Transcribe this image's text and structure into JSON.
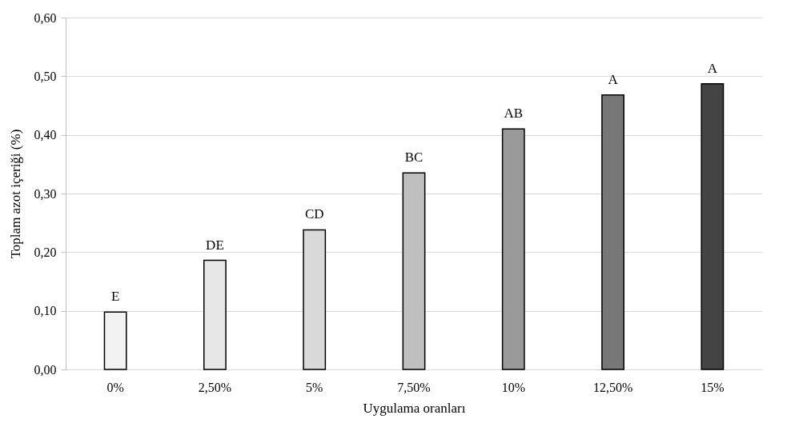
{
  "chart_data": {
    "type": "bar",
    "xlabel": "Uygulama oranları",
    "ylabel": "Toplam azot içeriği (%)",
    "categories": [
      "0%",
      "2,50%",
      "5%",
      "7,50%",
      "10%",
      "12,50%",
      "15%"
    ],
    "values": [
      0.098,
      0.186,
      0.238,
      0.335,
      0.41,
      0.468,
      0.487
    ],
    "colors": [
      "#f2f2f2",
      "#e6e6e6",
      "#d9d9d9",
      "#bfbfbf",
      "#999999",
      "#777777",
      "#444444"
    ],
    "ylim": [
      0,
      0.6
    ],
    "yticks": [
      {
        "value": 0,
        "label": "0,00"
      },
      {
        "value": 0.1,
        "label": "0,10"
      },
      {
        "value": 0.2,
        "label": "0,20"
      },
      {
        "value": 0.3,
        "label": "0,30"
      },
      {
        "value": 0.4,
        "label": "0,40"
      },
      {
        "value": 0.5,
        "label": "0,50"
      },
      {
        "value": 0.6,
        "label": "0,60"
      }
    ],
    "grid": "y",
    "annotations": [
      {
        "text": "E",
        "x": "0%",
        "y": 0.098
      },
      {
        "text": "DE",
        "x": "2,50%",
        "y": 0.186
      },
      {
        "text": "CD",
        "x": "5%",
        "y": 0.238
      },
      {
        "text": "BC",
        "x": "7,50%",
        "y": 0.335
      },
      {
        "text": "AB",
        "x": "10%",
        "y": 0.41
      },
      {
        "text": "A",
        "x": "12,50%",
        "y": 0.468
      },
      {
        "text": "A",
        "x": "15%",
        "y": 0.487
      }
    ]
  }
}
